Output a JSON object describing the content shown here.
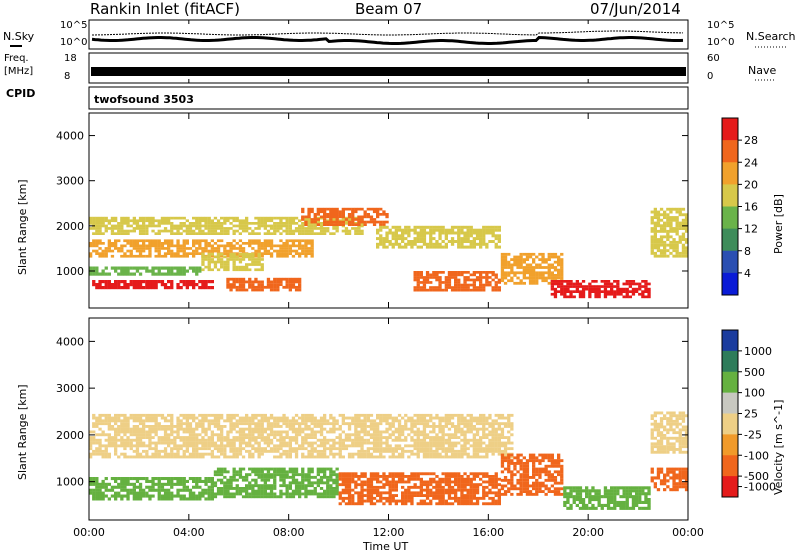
{
  "header": {
    "station": "Rankin Inlet (fitACF)",
    "beam": "Beam 07",
    "date": "07/Jun/2014"
  },
  "noise_panel": {
    "left_label": "N.Sky",
    "right_label": "N.Search",
    "left_ticks": [
      "10^5",
      "10^0"
    ],
    "right_ticks": [
      "10^5",
      "10^0"
    ]
  },
  "freq_panel": {
    "left_label_1": "Freq.",
    "left_label_2": "[MHz]",
    "right_label": "Nave",
    "left_ticks": [
      "18",
      "8"
    ],
    "right_ticks": [
      "60",
      "0"
    ]
  },
  "cpid_panel": {
    "label": "CPID",
    "value": "twofsound 3503"
  },
  "colors": {
    "power_scale": [
      "#0a1bd6",
      "#2a4fb2",
      "#3e8c5a",
      "#6ab34a",
      "#d7c84a",
      "#f1a12c",
      "#f0661c",
      "#e51b1b"
    ],
    "velocity_scale": [
      "#e51b1b",
      "#f0661c",
      "#f19a2a",
      "#eecf86",
      "#c8c8c0",
      "#65b140",
      "#2e7c5a",
      "#1b3c9e"
    ]
  },
  "chart_data": [
    {
      "type": "heatmap",
      "title": "Power",
      "ylabel": "Slant Range [km]",
      "xlabel": "Time UT",
      "y_ticks": [
        "1000",
        "2000",
        "3000",
        "4000"
      ],
      "x_ticks": [
        "00:00",
        "04:00",
        "08:00",
        "12:00",
        "16:00",
        "20:00",
        "00:00"
      ],
      "colorbar_label": "Power [dB]",
      "colorbar_ticks": [
        "4",
        "8",
        "12",
        "16",
        "20",
        "24",
        "28"
      ],
      "xlim": [
        0,
        24
      ],
      "ylim": [
        180,
        4500
      ],
      "bands": [
        {
          "t0": 0.0,
          "t1": 5.0,
          "r0": 600,
          "r1": 800,
          "value": 28
        },
        {
          "t0": 0.0,
          "t1": 4.5,
          "r0": 900,
          "r1": 1100,
          "value": 12
        },
        {
          "t0": 0.0,
          "t1": 9.0,
          "r0": 1300,
          "r1": 1700,
          "value": 20
        },
        {
          "t0": 0.0,
          "t1": 11.0,
          "r0": 1800,
          "r1": 2200,
          "value": 16
        },
        {
          "t0": 4.5,
          "t1": 7.0,
          "r0": 1000,
          "r1": 1400,
          "value": 18
        },
        {
          "t0": 5.5,
          "t1": 8.5,
          "r0": 550,
          "r1": 850,
          "value": 24
        },
        {
          "t0": 8.5,
          "t1": 12.0,
          "r0": 2000,
          "r1": 2400,
          "value": 26
        },
        {
          "t0": 11.5,
          "t1": 16.5,
          "r0": 1500,
          "r1": 2000,
          "value": 16
        },
        {
          "t0": 13.0,
          "t1": 16.5,
          "r0": 550,
          "r1": 1000,
          "value": 26
        },
        {
          "t0": 16.5,
          "t1": 19.0,
          "r0": 700,
          "r1": 1400,
          "value": 22
        },
        {
          "t0": 18.5,
          "t1": 22.5,
          "r0": 400,
          "r1": 800,
          "value": 28
        },
        {
          "t0": 22.5,
          "t1": 24.0,
          "r0": 1300,
          "r1": 2400,
          "value": 18
        }
      ]
    },
    {
      "type": "heatmap",
      "title": "Velocity",
      "ylabel": "Slant Range [km]",
      "xlabel": "Time UT",
      "y_ticks": [
        "1000",
        "2000",
        "3000",
        "4000"
      ],
      "x_ticks": [
        "00:00",
        "04:00",
        "08:00",
        "12:00",
        "16:00",
        "20:00",
        "00:00"
      ],
      "colorbar_label": "Velocity [m s^-1]",
      "colorbar_ticks": [
        "1000",
        "500",
        "100",
        "25",
        "-25",
        "-100",
        "-500",
        "-1000"
      ],
      "xlim": [
        0,
        24
      ],
      "ylim": [
        180,
        4500
      ],
      "bands": [
        {
          "t0": 0.0,
          "t1": 17.0,
          "r0": 1500,
          "r1": 2450,
          "value": 0
        },
        {
          "t0": 0.0,
          "t1": 5.0,
          "r0": 600,
          "r1": 1100,
          "value": 200
        },
        {
          "t0": 5.0,
          "t1": 10.0,
          "r0": 650,
          "r1": 1300,
          "value": 150
        },
        {
          "t0": 10.0,
          "t1": 16.5,
          "r0": 500,
          "r1": 1200,
          "value": -150
        },
        {
          "t0": 16.5,
          "t1": 19.0,
          "r0": 700,
          "r1": 1600,
          "value": -200
        },
        {
          "t0": 19.0,
          "t1": 22.5,
          "r0": 400,
          "r1": 900,
          "value": 120
        },
        {
          "t0": 22.5,
          "t1": 24.0,
          "r0": 800,
          "r1": 1300,
          "value": -150
        },
        {
          "t0": 22.5,
          "t1": 24.0,
          "r0": 1600,
          "r1": 2500,
          "value": 0
        }
      ]
    }
  ]
}
